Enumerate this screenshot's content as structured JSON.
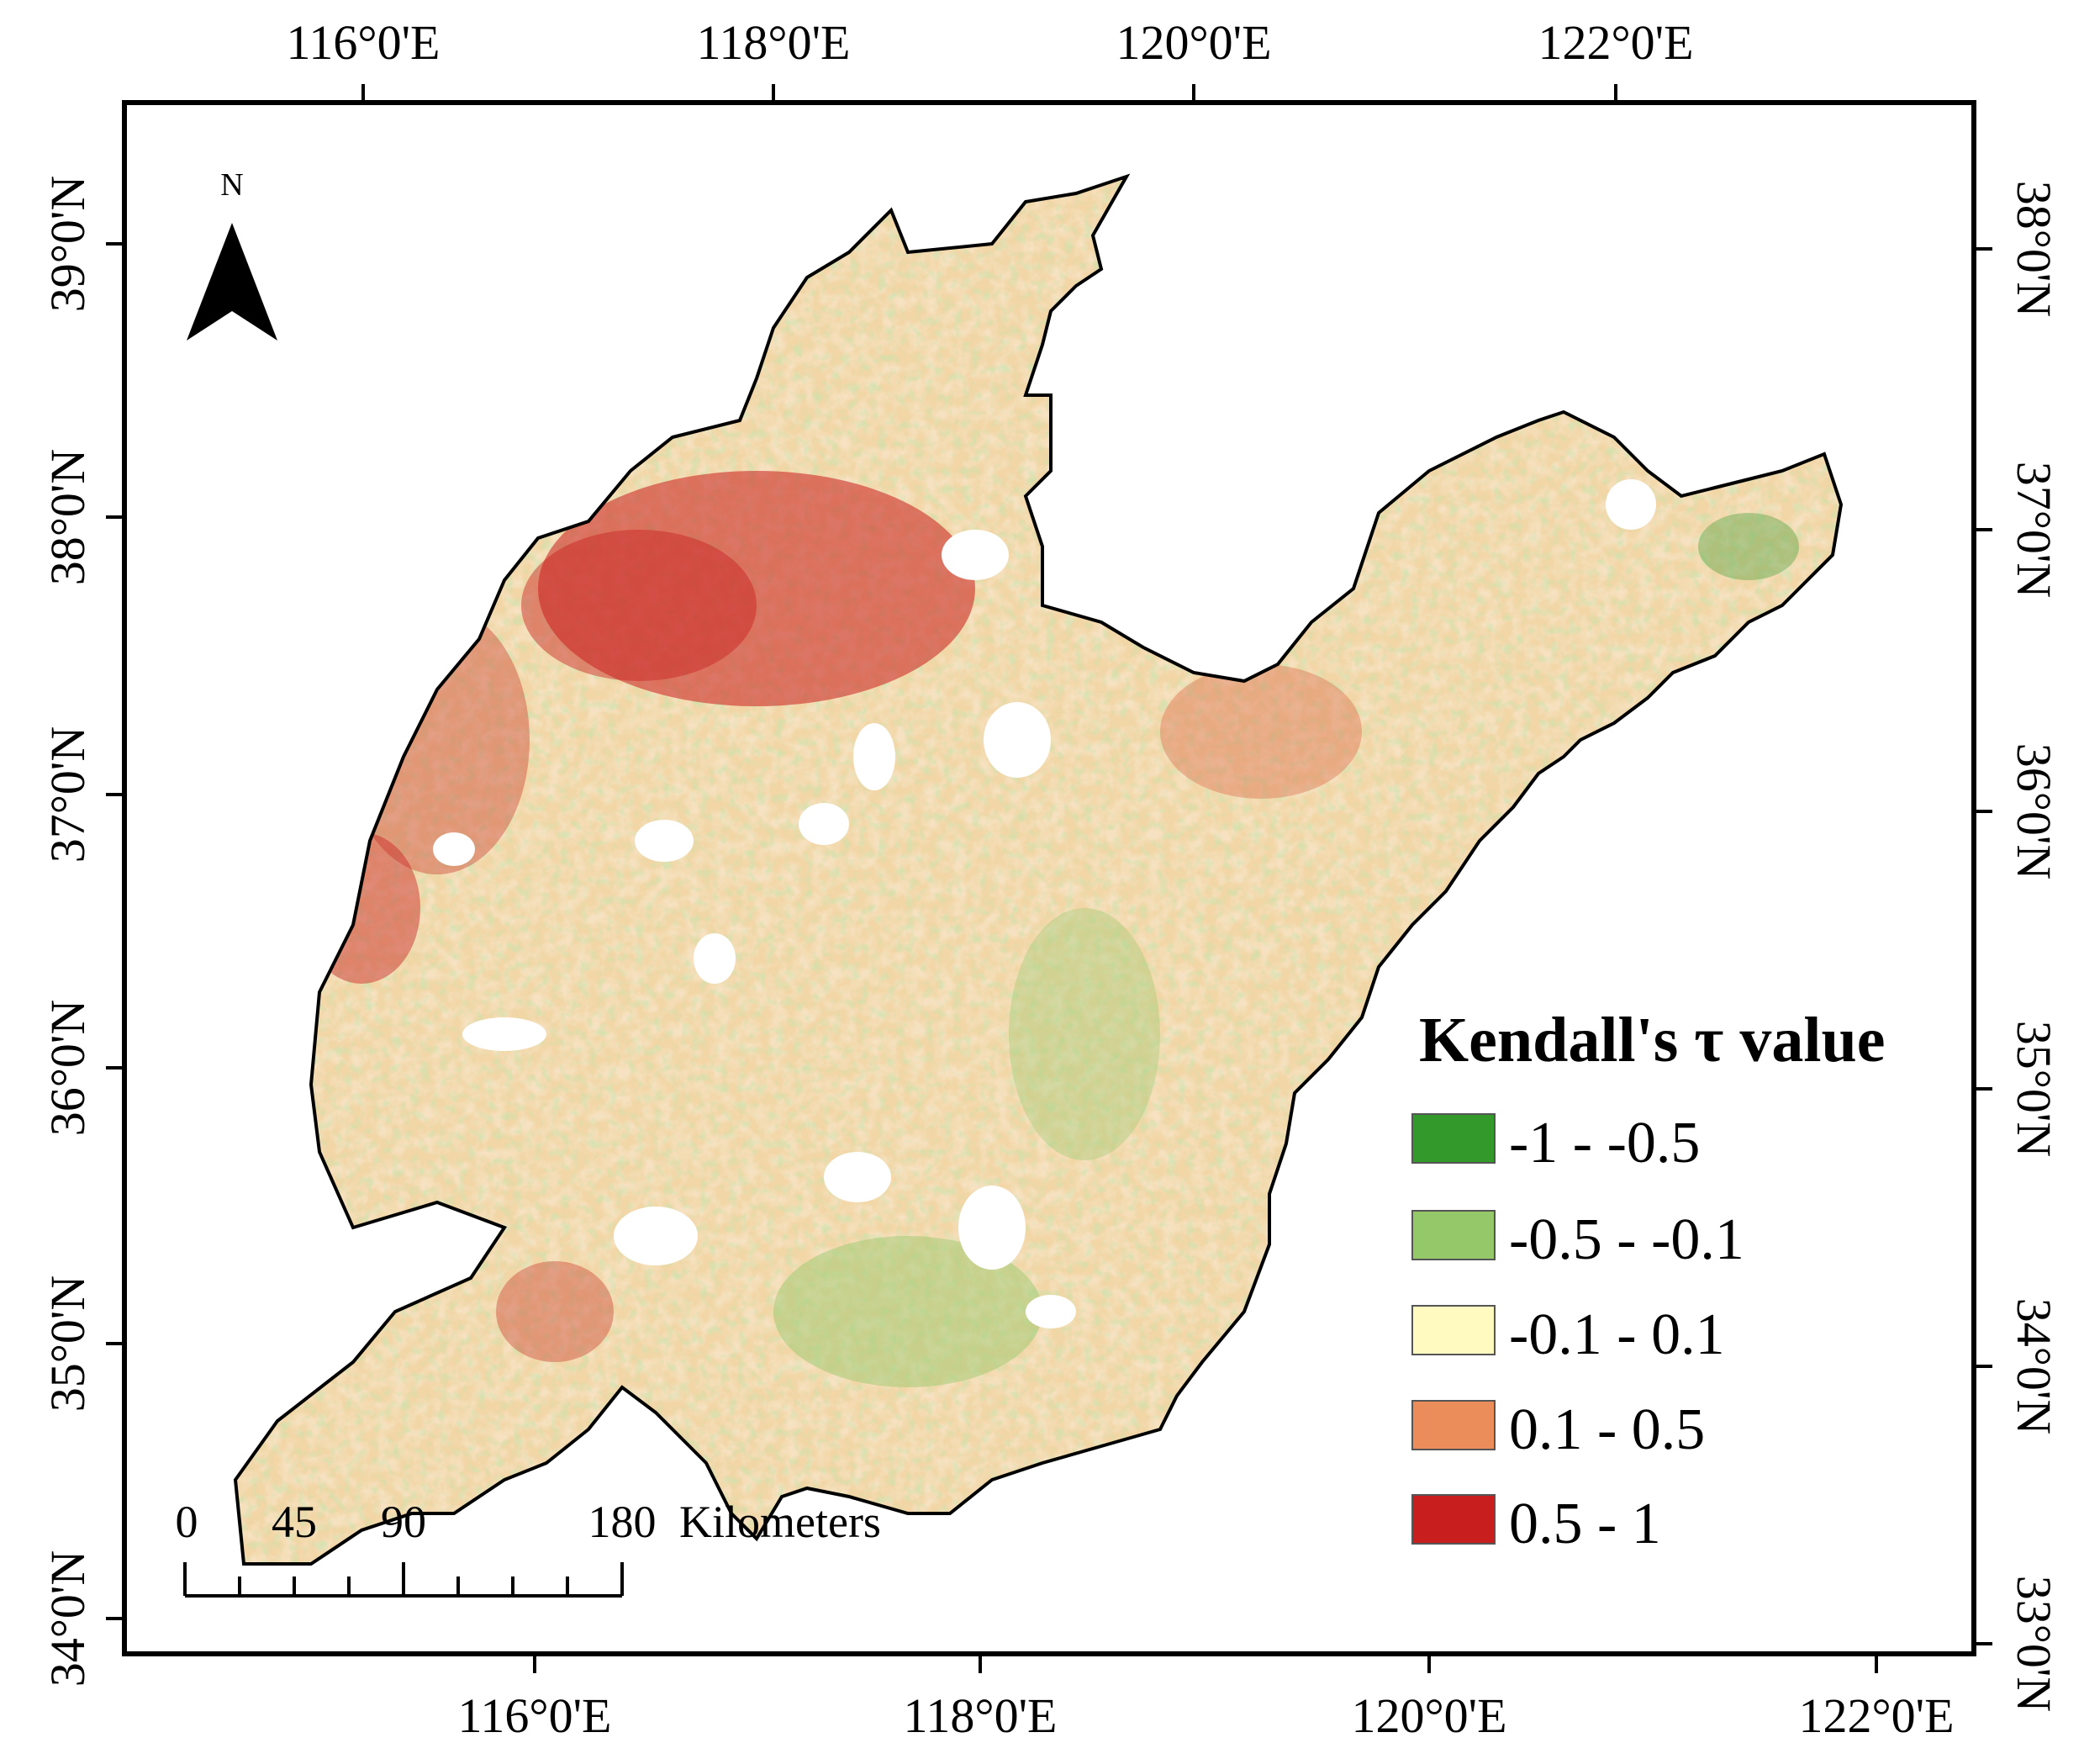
{
  "map": {
    "top_lon_labels": [
      "116°0'E",
      "118°0'E",
      "120°0'E",
      "122°0'E"
    ],
    "bottom_lon_labels": [
      "116°0'E",
      "118°0'E",
      "120°0'E",
      "122°0'E"
    ],
    "left_lat_labels": [
      "39°0'N",
      "38°0'N",
      "37°0'N",
      "36°0'N",
      "35°0'N",
      "34°0'N"
    ],
    "right_lat_labels": [
      "38°0'N",
      "37°0'N",
      "36°0'N",
      "35°0'N",
      "34°0'N",
      "33°0'N"
    ],
    "north_arrow": {
      "label": "N",
      "icon": "north-arrow-icon"
    },
    "legend": {
      "title": "Kendall's τ value",
      "classes": [
        {
          "label": "-1 - -0.5",
          "color": "#33992a"
        },
        {
          "label": "-0.5 - -0.1",
          "color": "#95c869"
        },
        {
          "label": "-0.1 - 0.1",
          "color": "#fefac0"
        },
        {
          "label": "0.1 - 0.5",
          "color": "#ea8d5a"
        },
        {
          "label": "0.5 - 1",
          "color": "#c81e1e"
        }
      ]
    },
    "scale_bar": {
      "ticks": [
        "0",
        "45",
        "90",
        "180"
      ],
      "unit": "Kilometers"
    }
  }
}
